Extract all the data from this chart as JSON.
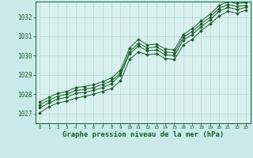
{
  "bg_color": "#c8eae8",
  "plot_bg_color": "#d8f0ee",
  "grid_color": "#b0d8d0",
  "line_color": "#1a5c28",
  "marker_color": "#1a5c28",
  "xlabel": "Graphe pression niveau de la mer (hPa)",
  "xlabel_fontsize": 6.5,
  "ylabel_ticks": [
    1027,
    1028,
    1029,
    1030,
    1031,
    1032
  ],
  "xlim": [
    -0.5,
    23.5
  ],
  "ylim": [
    1026.5,
    1032.8
  ],
  "series1": [
    1027.3,
    1027.55,
    1027.75,
    1027.85,
    1028.05,
    1028.1,
    1028.2,
    1028.35,
    1028.55,
    1029.0,
    1030.1,
    1030.5,
    1030.25,
    1030.3,
    1030.05,
    1030.0,
    1030.8,
    1031.1,
    1031.5,
    1031.85,
    1032.3,
    1032.5,
    1032.4,
    1032.5
  ],
  "series2": [
    1027.05,
    1027.35,
    1027.55,
    1027.65,
    1027.8,
    1027.9,
    1028.0,
    1028.15,
    1028.3,
    1028.7,
    1029.8,
    1030.2,
    1030.05,
    1030.1,
    1029.85,
    1029.8,
    1030.55,
    1030.85,
    1031.3,
    1031.65,
    1032.05,
    1032.3,
    1032.2,
    1032.35
  ],
  "series3": [
    1027.45,
    1027.7,
    1027.9,
    1028.0,
    1028.2,
    1028.25,
    1028.35,
    1028.5,
    1028.7,
    1029.1,
    1030.2,
    1030.65,
    1030.4,
    1030.45,
    1030.2,
    1030.15,
    1030.95,
    1031.25,
    1031.65,
    1032.0,
    1032.45,
    1032.65,
    1032.55,
    1032.6
  ],
  "series4": [
    1027.6,
    1027.85,
    1028.05,
    1028.15,
    1028.35,
    1028.4,
    1028.5,
    1028.65,
    1028.85,
    1029.25,
    1030.4,
    1030.85,
    1030.55,
    1030.6,
    1030.35,
    1030.3,
    1031.1,
    1031.4,
    1031.8,
    1032.15,
    1032.6,
    1032.8,
    1032.7,
    1032.75
  ],
  "xtick_labels": [
    "0",
    "1",
    "2",
    "3",
    "4",
    "5",
    "6",
    "7",
    "8",
    "9",
    "10",
    "11",
    "12",
    "13",
    "14",
    "15",
    "16",
    "17",
    "18",
    "19",
    "20",
    "21",
    "22",
    "23"
  ]
}
